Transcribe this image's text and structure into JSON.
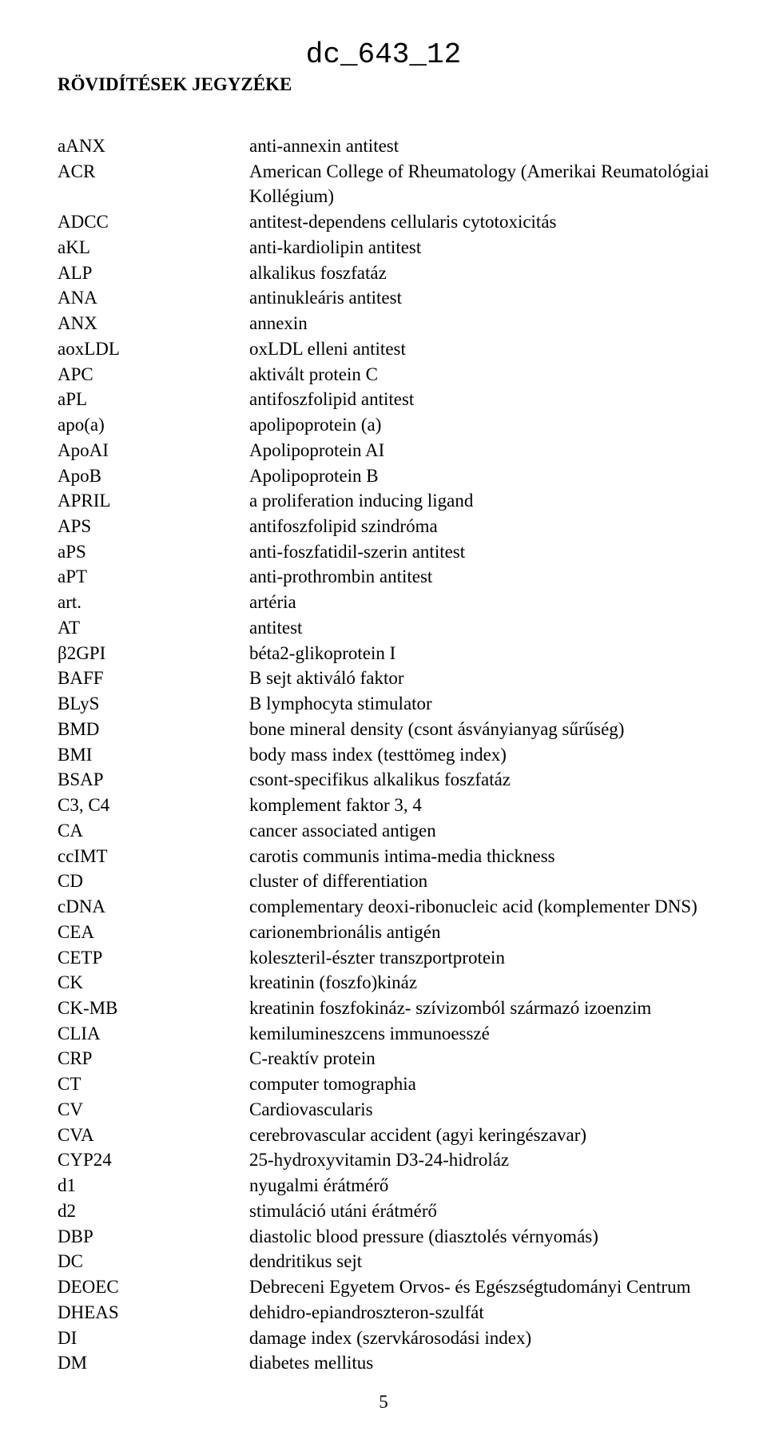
{
  "doc_id": "dc_643_12",
  "heading": "RÖVIDÍTÉSEK JEGYZÉKE",
  "page_number": "5",
  "entries": [
    {
      "abbr": "aANX",
      "defn": "anti-annexin antitest"
    },
    {
      "abbr": "ACR",
      "defn": "American College of Rheumatology (Amerikai Reumatológiai Kollégium)"
    },
    {
      "abbr": "ADCC",
      "defn": "antitest-dependens cellularis cytotoxicitás"
    },
    {
      "abbr": "aKL",
      "defn": "anti-kardiolipin antitest"
    },
    {
      "abbr": "ALP",
      "defn": "alkalikus foszfatáz"
    },
    {
      "abbr": "ANA",
      "defn": "antinukleáris antitest"
    },
    {
      "abbr": "ANX",
      "defn": "annexin"
    },
    {
      "abbr": "aoxLDL",
      "defn": "oxLDL elleni antitest"
    },
    {
      "abbr": "APC",
      "defn": "aktivált protein C"
    },
    {
      "abbr": "aPL",
      "defn": "antifoszfolipid antitest"
    },
    {
      "abbr": "apo(a)",
      "defn": "apolipoprotein (a)"
    },
    {
      "abbr": "ApoAI",
      "defn": "Apolipoprotein AI"
    },
    {
      "abbr": "ApoB",
      "defn": "Apolipoprotein B"
    },
    {
      "abbr": "APRIL",
      "defn": "a proliferation inducing ligand"
    },
    {
      "abbr": "APS",
      "defn": "antifoszfolipid szindróma"
    },
    {
      "abbr": "aPS",
      "defn": "anti-foszfatidil-szerin antitest"
    },
    {
      "abbr": "aPT",
      "defn": "anti-prothrombin antitest"
    },
    {
      "abbr": "art.",
      "defn": "artéria"
    },
    {
      "abbr": "AT",
      "defn": "antitest"
    },
    {
      "abbr": "β2GPI",
      "defn": "béta2-glikoprotein I"
    },
    {
      "abbr": "BAFF",
      "defn": "B sejt aktiváló faktor"
    },
    {
      "abbr": "BLyS",
      "defn": "B lymphocyta stimulator"
    },
    {
      "abbr": "BMD",
      "defn": "bone mineral density (csont ásványianyag sűrűség)"
    },
    {
      "abbr": "BMI",
      "defn": "body mass index (testtömeg index)"
    },
    {
      "abbr": "BSAP",
      "defn": "csont-specifikus alkalikus foszfatáz"
    },
    {
      "abbr": "C3, C4",
      "defn": "komplement faktor 3, 4"
    },
    {
      "abbr": "CA",
      "defn": "cancer associated antigen"
    },
    {
      "abbr": "ccIMT",
      "defn": "carotis communis intima-media thickness"
    },
    {
      "abbr": "CD",
      "defn": "cluster of differentiation"
    },
    {
      "abbr": "cDNA",
      "defn": "complementary deoxi-ribonucleic acid (komplementer DNS)"
    },
    {
      "abbr": "CEA",
      "defn": "carionembrionális antigén"
    },
    {
      "abbr": "CETP",
      "defn": "koleszteril-észter transzportprotein"
    },
    {
      "abbr": "CK",
      "defn": "kreatinin (foszfo)kináz"
    },
    {
      "abbr": "CK-MB",
      "defn": "kreatinin foszfokináz- szívizomból származó izoenzim"
    },
    {
      "abbr": "CLIA",
      "defn": "kemilumineszcens immunoesszé"
    },
    {
      "abbr": "CRP",
      "defn": "C-reaktív protein"
    },
    {
      "abbr": "CT",
      "defn": "computer tomographia"
    },
    {
      "abbr": "CV",
      "defn": "Cardiovascularis"
    },
    {
      "abbr": "CVA",
      "defn": "cerebrovascular accident (agyi keringészavar)"
    },
    {
      "abbr": "CYP24",
      "defn": "25-hydroxyvitamin D3-24-hidroláz"
    },
    {
      "abbr": "d1",
      "defn": "nyugalmi érátmérő"
    },
    {
      "abbr": "d2",
      "defn": "stimuláció utáni érátmérő"
    },
    {
      "abbr": "DBP",
      "defn": "diastolic blood pressure (diasztolés vérnyomás)"
    },
    {
      "abbr": "DC",
      "defn": "dendritikus sejt"
    },
    {
      "abbr": "DEOEC",
      "defn": "Debreceni Egyetem Orvos- és Egészségtudományi Centrum"
    },
    {
      "abbr": "DHEAS",
      "defn": "dehidro-epiandroszteron-szulfát"
    },
    {
      "abbr": "DI",
      "defn": "damage index (szervkárosodási index)"
    },
    {
      "abbr": "DM",
      "defn": "diabetes mellitus"
    }
  ]
}
